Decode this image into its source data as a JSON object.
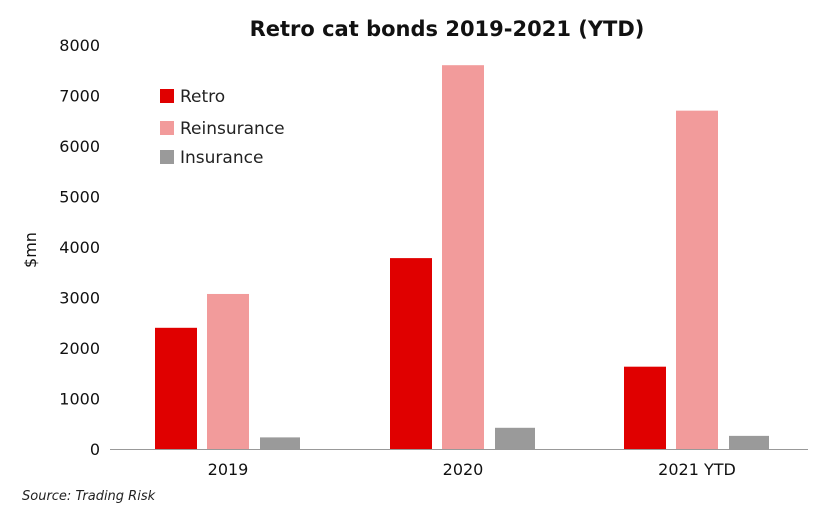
{
  "chart_data": {
    "type": "bar",
    "title": "Retro cat bonds 2019-2021 (YTD)",
    "xlabel": "",
    "ylabel": "$mn",
    "ylim": [
      0,
      8000
    ],
    "yticks": [
      "0",
      "1000",
      "2000",
      "3000",
      "4000",
      "5000",
      "6000",
      "7000",
      "8000"
    ],
    "categories": [
      "2019",
      "2020",
      "2021 YTD"
    ],
    "series": [
      {
        "name": "Retro",
        "color": "#e00000",
        "values": [
          2400,
          3780,
          1630
        ]
      },
      {
        "name": "Reinsurance",
        "color": "#f29b9b",
        "values": [
          3070,
          7600,
          6700
        ]
      },
      {
        "name": "Insurance",
        "color": "#9a9a9a",
        "values": [
          230,
          420,
          260
        ]
      }
    ],
    "legend_position": "top-left",
    "grid": false,
    "source": "Source: Trading Risk"
  }
}
